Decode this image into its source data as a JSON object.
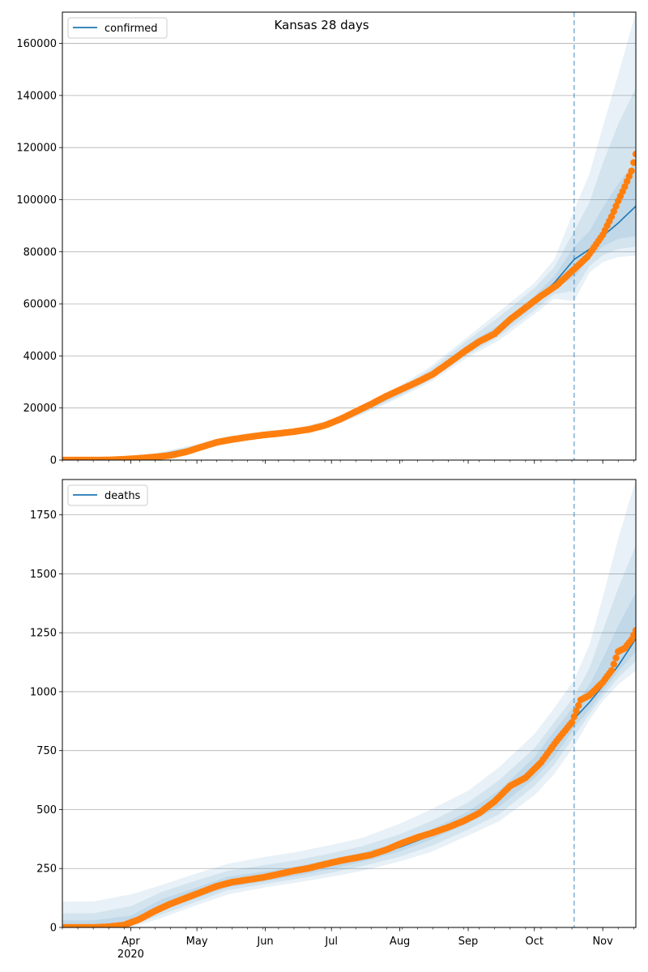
{
  "chart_data": [
    {
      "type": "line",
      "title": "Kansas 28 days",
      "series": [
        {
          "name": "confirmed",
          "color": "#1f77b4"
        }
      ],
      "observed_color": "#ff7f0e",
      "band_color": "#1f77b4",
      "forecast_start": "2020-10-19",
      "xlim": [
        "2020-03-01",
        "2020-11-16"
      ],
      "ylim": [
        0,
        172000
      ],
      "yticks": [
        0,
        20000,
        40000,
        60000,
        80000,
        100000,
        120000,
        140000,
        160000
      ],
      "ytick_labels": [
        "0",
        "20000",
        "40000",
        "60000",
        "80000",
        "100000",
        "120000",
        "140000",
        "160000"
      ],
      "grid": "horizontal",
      "legend_position": "top-left",
      "model_curve": [
        [
          "2020-03-01",
          0
        ],
        [
          "2020-03-15",
          100
        ],
        [
          "2020-04-01",
          900
        ],
        [
          "2020-04-15",
          2200
        ],
        [
          "2020-05-01",
          5000
        ],
        [
          "2020-05-15",
          7800
        ],
        [
          "2020-06-01",
          9900
        ],
        [
          "2020-06-15",
          11000
        ],
        [
          "2020-07-01",
          14000
        ],
        [
          "2020-07-15",
          19000
        ],
        [
          "2020-08-01",
          26000
        ],
        [
          "2020-08-15",
          32500
        ],
        [
          "2020-09-01",
          43000
        ],
        [
          "2020-09-15",
          50000
        ],
        [
          "2020-10-01",
          61000
        ],
        [
          "2020-10-10",
          68000
        ],
        [
          "2020-10-19",
          77000
        ],
        [
          "2020-10-26",
          81000
        ],
        [
          "2020-11-01",
          86000
        ],
        [
          "2020-11-08",
          91000
        ],
        [
          "2020-11-16",
          97500
        ]
      ],
      "bands": [
        {
          "lower": [
            0,
            0,
            500,
            1500,
            4000,
            6800,
            9000,
            10000,
            12800,
            17500,
            24000,
            30000,
            39500,
            46000,
            56000,
            62000,
            61000,
            72000,
            76000,
            78000,
            78500
          ],
          "upper": [
            200,
            400,
            1400,
            3100,
            6200,
            9200,
            11200,
            12300,
            15500,
            21000,
            28500,
            36000,
            47500,
            57000,
            68000,
            77000,
            96000,
            110000,
            128000,
            148000,
            172000
          ]
        },
        {
          "lower": [
            0,
            0,
            600,
            1700,
            4300,
            7100,
            9300,
            10300,
            13100,
            17900,
            24600,
            30900,
            40500,
            47500,
            57500,
            63700,
            65000,
            74500,
            78700,
            81000,
            82000
          ],
          "upper": [
            150,
            300,
            1250,
            2800,
            5800,
            8800,
            10800,
            11900,
            15100,
            20400,
            27700,
            35000,
            46200,
            55000,
            66000,
            74000,
            88000,
            99000,
            114000,
            129000,
            143000
          ]
        },
        {
          "lower": [
            0,
            0,
            700,
            1900,
            4600,
            7400,
            9550,
            10650,
            13550,
            18400,
            25300,
            31700,
            41700,
            48700,
            59200,
            66000,
            70000,
            77500,
            82000,
            85000,
            86000
          ],
          "upper": [
            100,
            200,
            1100,
            2500,
            5400,
            8300,
            10300,
            11400,
            14600,
            19700,
            26800,
            33700,
            44500,
            52000,
            63000,
            70500,
            82000,
            88000,
            97000,
            106000,
            115000
          ]
        }
      ],
      "observed": [
        [
          "2020-03-01",
          0
        ],
        [
          "2020-03-08",
          0
        ],
        [
          "2020-03-15",
          20
        ],
        [
          "2020-03-22",
          60
        ],
        [
          "2020-03-29",
          320
        ],
        [
          "2020-04-05",
          700
        ],
        [
          "2020-04-12",
          1200
        ],
        [
          "2020-04-19",
          1800
        ],
        [
          "2020-04-26",
          3100
        ],
        [
          "2020-05-03",
          5000
        ],
        [
          "2020-05-10",
          6800
        ],
        [
          "2020-05-17",
          7900
        ],
        [
          "2020-05-24",
          8800
        ],
        [
          "2020-05-31",
          9600
        ],
        [
          "2020-06-07",
          10200
        ],
        [
          "2020-06-14",
          10900
        ],
        [
          "2020-06-21",
          11800
        ],
        [
          "2020-06-28",
          13300
        ],
        [
          "2020-07-05",
          15700
        ],
        [
          "2020-07-12",
          18600
        ],
        [
          "2020-07-19",
          21500
        ],
        [
          "2020-07-26",
          24600
        ],
        [
          "2020-08-02",
          27300
        ],
        [
          "2020-08-09",
          30000
        ],
        [
          "2020-08-16",
          33000
        ],
        [
          "2020-08-23",
          37200
        ],
        [
          "2020-08-30",
          41500
        ],
        [
          "2020-09-06",
          45500
        ],
        [
          "2020-09-13",
          48500
        ],
        [
          "2020-09-20",
          54000
        ],
        [
          "2020-09-27",
          58500
        ],
        [
          "2020-10-04",
          63000
        ],
        [
          "2020-10-11",
          67000
        ],
        [
          "2020-10-18",
          72500
        ],
        [
          "2020-10-25",
          78000
        ],
        [
          "2020-11-01",
          86500
        ],
        [
          "2020-11-05",
          93500
        ],
        [
          "2020-11-08",
          99500
        ],
        [
          "2020-11-11",
          105000
        ],
        [
          "2020-11-14",
          111000
        ],
        [
          "2020-11-16",
          117500
        ]
      ]
    },
    {
      "type": "line",
      "title": "",
      "series": [
        {
          "name": "deaths",
          "color": "#1f77b4"
        }
      ],
      "observed_color": "#ff7f0e",
      "band_color": "#1f77b4",
      "forecast_start": "2020-10-19",
      "xlim": [
        "2020-03-01",
        "2020-11-16"
      ],
      "ylim": [
        0,
        1900
      ],
      "yticks": [
        0,
        250,
        500,
        750,
        1000,
        1250,
        1500,
        1750
      ],
      "ytick_labels": [
        "0",
        "250",
        "500",
        "750",
        "1000",
        "1250",
        "1500",
        "1750"
      ],
      "xtick_labels": [
        "Apr\n2020",
        "May",
        "Jun",
        "Jul",
        "Aug",
        "Sep",
        "Oct",
        "Nov"
      ],
      "xticks": [
        "2020-04-01",
        "2020-05-01",
        "2020-06-01",
        "2020-07-01",
        "2020-08-01",
        "2020-09-01",
        "2020-10-01",
        "2020-11-01"
      ],
      "grid": "horizontal",
      "legend_position": "top-left",
      "model_curve": [
        [
          "2020-03-01",
          0
        ],
        [
          "2020-03-15",
          2
        ],
        [
          "2020-04-01",
          25
        ],
        [
          "2020-04-15",
          90
        ],
        [
          "2020-05-01",
          140
        ],
        [
          "2020-05-15",
          185
        ],
        [
          "2020-06-01",
          210
        ],
        [
          "2020-06-15",
          232
        ],
        [
          "2020-07-01",
          265
        ],
        [
          "2020-07-15",
          295
        ],
        [
          "2020-08-01",
          340
        ],
        [
          "2020-08-15",
          390
        ],
        [
          "2020-09-01",
          460
        ],
        [
          "2020-09-15",
          545
        ],
        [
          "2020-10-01",
          680
        ],
        [
          "2020-10-10",
          780
        ],
        [
          "2020-10-19",
          885
        ],
        [
          "2020-10-26",
          955
        ],
        [
          "2020-11-01",
          1025
        ],
        [
          "2020-11-08",
          1110
        ],
        [
          "2020-11-16",
          1225
        ]
      ],
      "bands": [
        {
          "lower": [
            0,
            0,
            0,
            40,
            95,
            140,
            170,
            190,
            215,
            240,
            280,
            320,
            390,
            450,
            560,
            650,
            770,
            880,
            960,
            1030,
            1090
          ],
          "upper": [
            110,
            110,
            140,
            180,
            230,
            270,
            300,
            320,
            350,
            380,
            440,
            500,
            580,
            680,
            820,
            930,
            1050,
            1200,
            1400,
            1650,
            1900
          ]
        },
        {
          "lower": [
            0,
            0,
            5,
            55,
            110,
            158,
            185,
            205,
            232,
            260,
            300,
            345,
            415,
            480,
            600,
            690,
            810,
            905,
            980,
            1060,
            1130
          ],
          "upper": [
            60,
            60,
            90,
            150,
            200,
            240,
            265,
            285,
            315,
            345,
            395,
            450,
            530,
            625,
            760,
            870,
            980,
            1100,
            1260,
            1440,
            1620
          ]
        },
        {
          "lower": [
            0,
            0,
            10,
            70,
            125,
            170,
            197,
            218,
            248,
            278,
            322,
            372,
            442,
            512,
            632,
            722,
            845,
            925,
            1000,
            1085,
            1170
          ],
          "upper": [
            30,
            30,
            50,
            120,
            170,
            215,
            238,
            258,
            290,
            318,
            362,
            415,
            492,
            582,
            722,
            832,
            940,
            1030,
            1140,
            1280,
            1420
          ]
        }
      ],
      "observed": [
        [
          "2020-03-01",
          0
        ],
        [
          "2020-03-08",
          0
        ],
        [
          "2020-03-15",
          0
        ],
        [
          "2020-03-22",
          3
        ],
        [
          "2020-03-29",
          10
        ],
        [
          "2020-04-05",
          35
        ],
        [
          "2020-04-12",
          70
        ],
        [
          "2020-04-19",
          100
        ],
        [
          "2020-04-26",
          125
        ],
        [
          "2020-05-03",
          150
        ],
        [
          "2020-05-10",
          175
        ],
        [
          "2020-05-17",
          192
        ],
        [
          "2020-05-24",
          202
        ],
        [
          "2020-05-31",
          212
        ],
        [
          "2020-06-07",
          226
        ],
        [
          "2020-06-14",
          240
        ],
        [
          "2020-06-21",
          252
        ],
        [
          "2020-06-28",
          268
        ],
        [
          "2020-07-05",
          283
        ],
        [
          "2020-07-12",
          295
        ],
        [
          "2020-07-19",
          308
        ],
        [
          "2020-07-26",
          330
        ],
        [
          "2020-08-02",
          358
        ],
        [
          "2020-08-09",
          382
        ],
        [
          "2020-08-16",
          402
        ],
        [
          "2020-08-23",
          425
        ],
        [
          "2020-08-30",
          452
        ],
        [
          "2020-09-06",
          485
        ],
        [
          "2020-09-13",
          535
        ],
        [
          "2020-09-20",
          600
        ],
        [
          "2020-09-27",
          635
        ],
        [
          "2020-10-04",
          700
        ],
        [
          "2020-10-11",
          790
        ],
        [
          "2020-10-18",
          870
        ],
        [
          "2020-10-22",
          965
        ],
        [
          "2020-10-26",
          985
        ],
        [
          "2020-11-01",
          1040
        ],
        [
          "2020-11-05",
          1090
        ],
        [
          "2020-11-08",
          1170
        ],
        [
          "2020-11-11",
          1185
        ],
        [
          "2020-11-14",
          1220
        ],
        [
          "2020-11-16",
          1260
        ]
      ]
    }
  ]
}
